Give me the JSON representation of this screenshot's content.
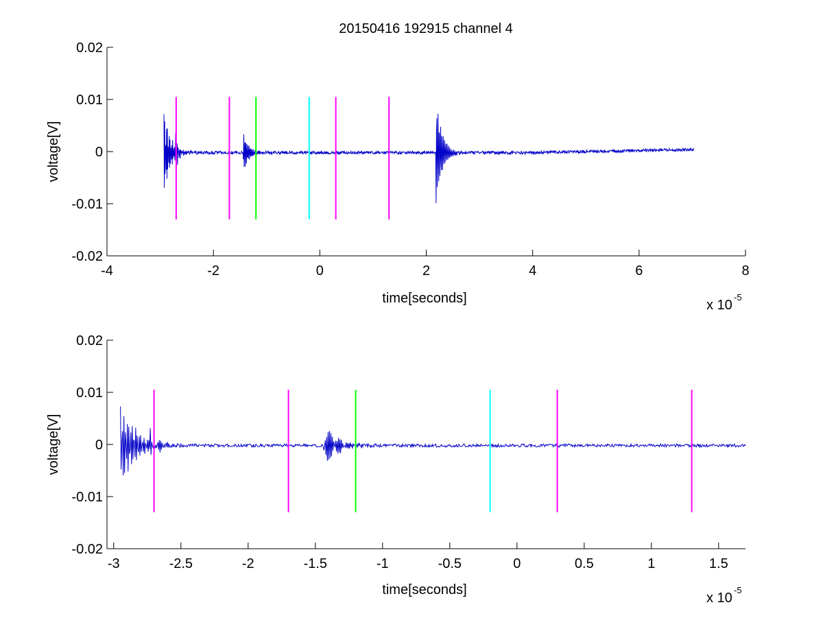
{
  "chart_data": [
    {
      "type": "line",
      "title": "20150416 192915 channel 4",
      "xlabel": "time[seconds]",
      "ylabel": "voltage[V]",
      "x_multiplier": "x 10",
      "x_multiplier_exp": "-5",
      "xlim": [
        -4,
        8
      ],
      "ylim": [
        -0.02,
        0.02
      ],
      "xticks": [
        -4,
        -2,
        0,
        2,
        4,
        6,
        8
      ],
      "xtick_labels": [
        "-4",
        "-2",
        "0",
        "2",
        "4",
        "6",
        "8"
      ],
      "yticks": [
        -0.02,
        -0.01,
        0,
        0.01,
        0.02
      ],
      "ytick_labels": [
        "-0.02",
        "-0.01",
        "0",
        "0.01",
        "0.02"
      ],
      "series": [
        {
          "color": "#0000c8",
          "x_range": [
            -2.93,
            7.03
          ],
          "samples": 1400,
          "baseline": -0.0002,
          "noise": 0.0003,
          "bursts": [
            {
              "t0": -2.93,
              "amp": 0.0085,
              "freq": 8.0,
              "decay": 0.12
            },
            {
              "t0": -2.72,
              "amp": 0.009,
              "freq": 10.0,
              "decay": 0.03
            },
            {
              "t0": -1.44,
              "amp": 0.0045,
              "freq": 9.0,
              "decay": 0.1
            },
            {
              "t0": 2.18,
              "amp": 0.011,
              "freq": 10.0,
              "decay": 0.12
            }
          ],
          "drift": [
            {
              "t": 4.0,
              "v": 0.0
            },
            {
              "t": 7.0,
              "v": 0.0006
            }
          ]
        }
      ],
      "markers": [
        {
          "x": -2.7,
          "y0": -0.013,
          "y1": 0.0105,
          "color": "#ff00ff"
        },
        {
          "x": -1.7,
          "y0": -0.013,
          "y1": 0.0105,
          "color": "#ff00ff"
        },
        {
          "x": -1.2,
          "y0": -0.013,
          "y1": 0.0105,
          "color": "#00ff00"
        },
        {
          "x": -0.2,
          "y0": -0.013,
          "y1": 0.0105,
          "color": "#00ffff"
        },
        {
          "x": 0.3,
          "y0": -0.013,
          "y1": 0.0105,
          "color": "#ff00ff"
        },
        {
          "x": 1.3,
          "y0": -0.013,
          "y1": 0.0105,
          "color": "#ff00ff"
        }
      ]
    },
    {
      "type": "line",
      "title": "",
      "xlabel": "time[seconds]",
      "ylabel": "voltage[V]",
      "x_multiplier": "x 10",
      "x_multiplier_exp": "-5",
      "xlim": [
        -3.05,
        1.7
      ],
      "ylim": [
        -0.02,
        0.02
      ],
      "xticks": [
        -3,
        -2.5,
        -2,
        -1.5,
        -1,
        -0.5,
        0,
        0.5,
        1,
        1.5
      ],
      "xtick_labels": [
        "-3",
        "-2.5",
        "-2",
        "-1.5",
        "-1",
        "-0.5",
        "0",
        "0.5",
        "1",
        "1.5"
      ],
      "yticks": [
        -0.02,
        -0.01,
        0,
        0.01,
        0.02
      ],
      "ytick_labels": [
        "-0.02",
        "-0.01",
        "0",
        "0.01",
        "0.02"
      ],
      "series": [
        {
          "color": "#0000c8",
          "x_range": [
            -2.95,
            1.7
          ],
          "samples": 900,
          "baseline": -0.0002,
          "noise": 0.0003,
          "bursts": [
            {
              "t0": -2.95,
              "amp": 0.0085,
              "freq": 8.0,
              "decay": 0.12
            },
            {
              "t0": -2.73,
              "amp": 0.009,
              "freq": 10.0,
              "decay": 0.03
            },
            {
              "t0": -1.44,
              "amp": 0.005,
              "freq": 9.0,
              "decay": 0.1
            }
          ],
          "drift": []
        }
      ],
      "markers": [
        {
          "x": -2.7,
          "y0": -0.013,
          "y1": 0.0105,
          "color": "#ff00ff"
        },
        {
          "x": -1.7,
          "y0": -0.013,
          "y1": 0.0105,
          "color": "#ff00ff"
        },
        {
          "x": -1.2,
          "y0": -0.013,
          "y1": 0.0105,
          "color": "#00ff00"
        },
        {
          "x": -0.2,
          "y0": -0.013,
          "y1": 0.0105,
          "color": "#00ffff"
        },
        {
          "x": 0.3,
          "y0": -0.013,
          "y1": 0.0105,
          "color": "#ff00ff"
        },
        {
          "x": 1.3,
          "y0": -0.013,
          "y1": 0.0105,
          "color": "#ff00ff"
        }
      ]
    }
  ]
}
